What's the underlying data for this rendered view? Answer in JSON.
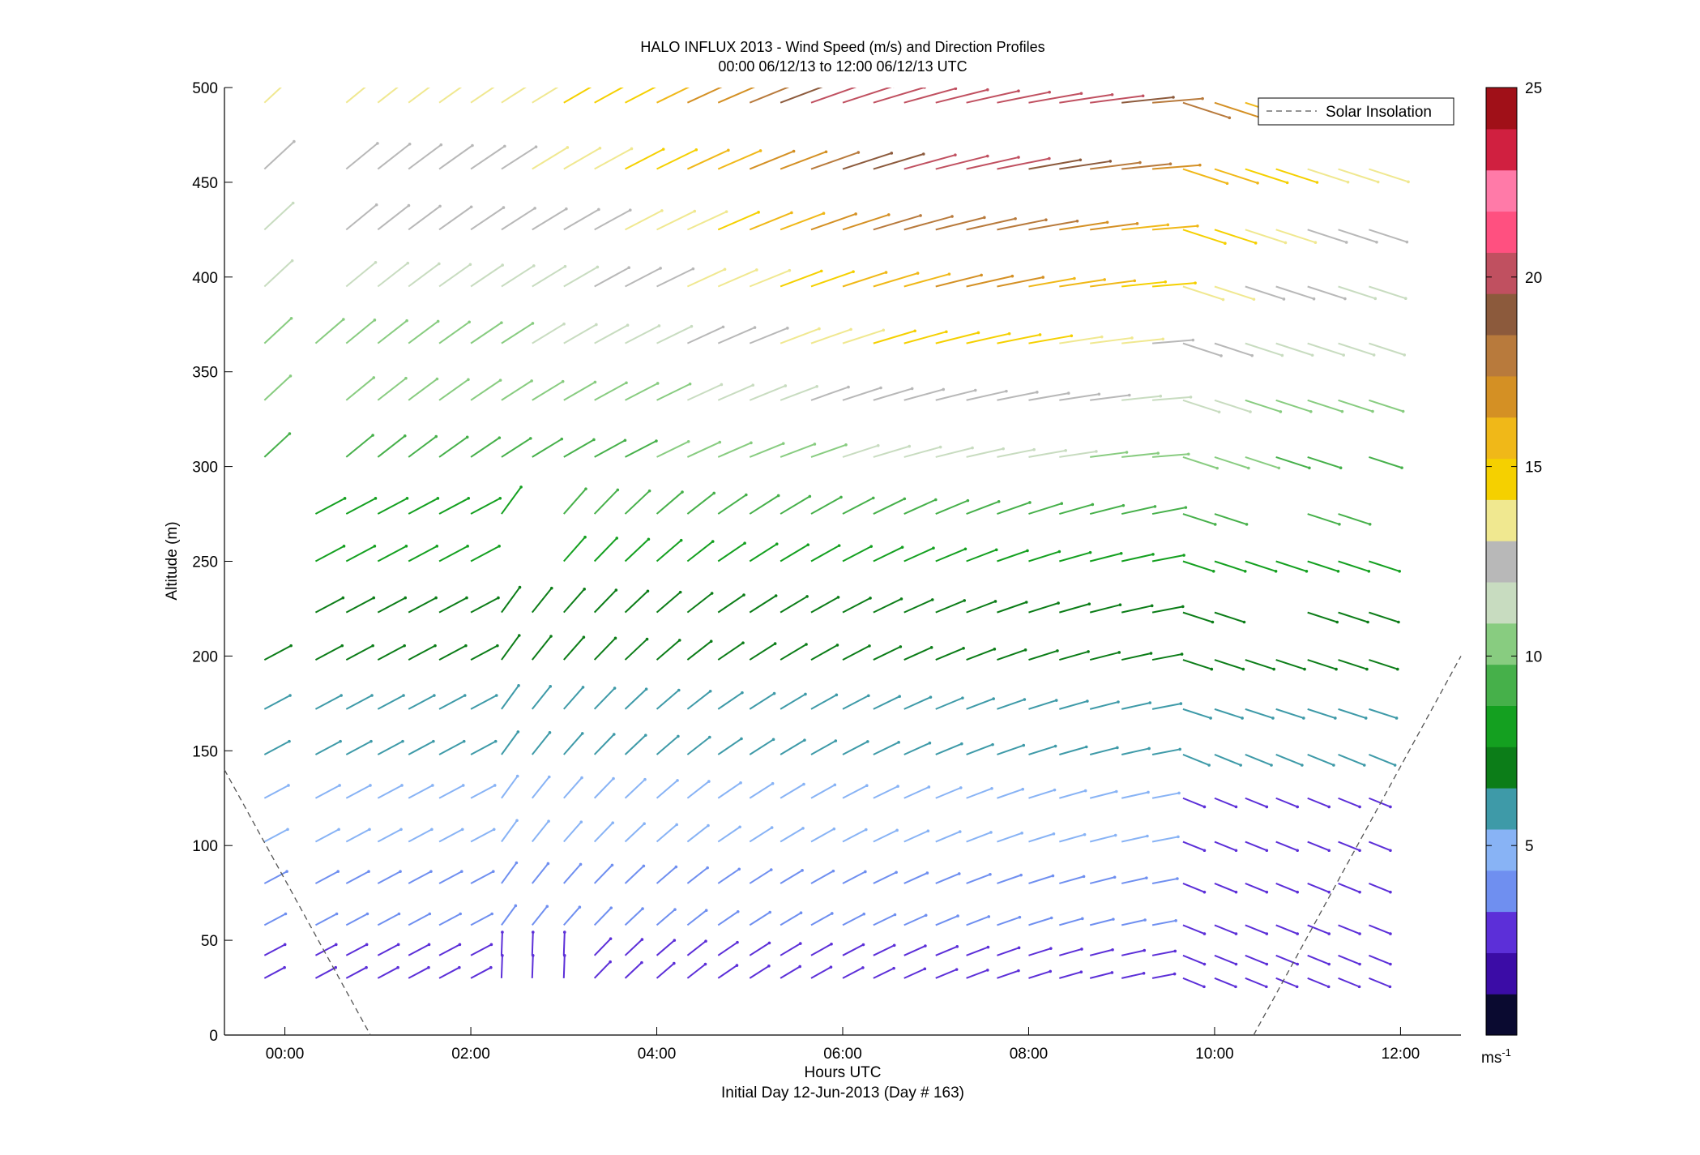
{
  "chart_data": {
    "type": "vector-field",
    "title": "HALO INFLUX 2013 - Wind Speed (m/s) and Direction Profiles",
    "subtitle": "00:00 06/12/13 to 12:00 06/12/13  UTC",
    "xlabel": "Hours UTC",
    "xlabel2": "Initial Day 12-Jun-2013 (Day # 163)",
    "ylabel": "Altitude (m)",
    "xlim_hours": [
      -0.65,
      12.65
    ],
    "ylim": [
      0,
      500
    ],
    "x_ticks": [
      {
        "value": 0,
        "label": "00:00"
      },
      {
        "value": 2,
        "label": "02:00"
      },
      {
        "value": 4,
        "label": "04:00"
      },
      {
        "value": 6,
        "label": "06:00"
      },
      {
        "value": 8,
        "label": "08:00"
      },
      {
        "value": 10,
        "label": "10:00"
      },
      {
        "value": 12,
        "label": "12:00"
      }
    ],
    "y_ticks": [
      0,
      50,
      100,
      150,
      200,
      250,
      300,
      350,
      400,
      450,
      500
    ],
    "legend": {
      "entries": [
        "Solar Insolation"
      ],
      "placement": "top-right"
    },
    "series": [
      {
        "name": "Solar Insolation",
        "style": "dashed",
        "color": "#555555",
        "points": [
          [
            -0.65,
            140
          ],
          [
            0.92,
            0
          ]
        ],
        "points_end": [
          [
            10.42,
            0
          ],
          [
            12.65,
            200
          ]
        ]
      }
    ],
    "vectors": {
      "times_hours": [
        -0.22,
        0.33,
        0.66,
        1.0,
        1.33,
        1.66,
        2.0,
        2.33,
        2.66,
        3.0,
        3.33,
        3.66,
        4.0,
        4.33,
        4.66,
        5.0,
        5.33,
        5.66,
        6.0,
        6.33,
        6.66,
        7.0,
        7.33,
        7.66,
        8.0,
        8.33,
        8.66,
        9.0,
        9.33,
        9.66,
        10.0,
        10.33,
        10.66,
        11.0,
        11.33,
        11.66
      ],
      "altitudes_m": [
        30,
        42,
        58,
        80,
        102,
        125,
        148,
        172,
        198,
        223,
        250,
        275,
        305,
        335,
        365,
        395,
        425,
        457,
        492
      ],
      "note_units": "speed in m/s, direction in degrees (meteorological, wind from)"
    },
    "colorbar": {
      "label": "ms-1",
      "label_main": "ms",
      "label_sup": "-1",
      "range": [
        0,
        25
      ],
      "ticks": [
        5,
        10,
        15,
        20,
        25
      ],
      "colors": [
        "#0a0a30",
        "#3b0ca6",
        "#5c2fd8",
        "#6f8ff0",
        "#88b3f5",
        "#3e9aa8",
        "#0c7d18",
        "#14a020",
        "#46b04a",
        "#88cc80",
        "#c8dcc0",
        "#b8b8b8",
        "#f0e890",
        "#f5d000",
        "#f0b818",
        "#d49024",
        "#b87a3c",
        "#8c5a3c",
        "#c05060",
        "#ff5080",
        "#ff7aa8",
        "#d02040",
        "#a01018"
      ]
    }
  }
}
